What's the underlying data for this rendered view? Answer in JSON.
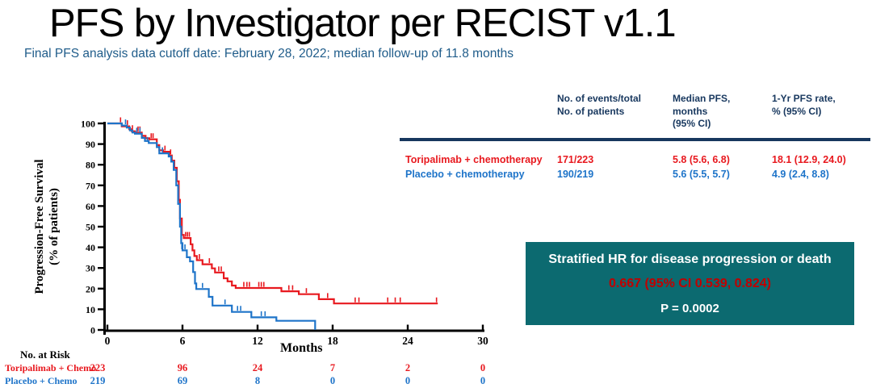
{
  "slide": {
    "title": "PFS by Investigator per RECIST v1.1",
    "subtitle": "Final PFS analysis data cutoff date: February 28, 2022; median follow-up of 11.8 months"
  },
  "summary_table": {
    "headers": [
      "No. of events/total\nNo. of patients",
      "Median PFS,\nmonths\n(95% CI)",
      "1-Yr PFS rate,\n% (95% CI)"
    ],
    "rows": [
      {
        "label": "Toripalimab + chemotherapy",
        "events": "171/223",
        "median_pfs": "5.8 (5.6, 6.8)",
        "one_yr_rate": "18.1 (12.9, 24.0)"
      },
      {
        "label": "Placebo + chemotherapy",
        "events": "190/219",
        "median_pfs": "5.6 (5.5, 5.7)",
        "one_yr_rate": "4.9 (2.4, 8.8)"
      }
    ]
  },
  "hr_box": {
    "title": "Stratified HR for disease progression or death",
    "hr_value": "0.667 (95% CI 0.539, 0.824)",
    "p_value": "P = 0.0002"
  },
  "colors": {
    "toripalimab_red": "#e8191f",
    "placebo_blue": "#1e74c9",
    "table_navy": "#17375e",
    "subtitle_blue": "#1f5c8a",
    "hr_box_teal": "#0c6a70",
    "hr_value_red": "#c00000"
  },
  "chart_data": {
    "type": "line",
    "subtype": "kaplan-meier-step",
    "title": "",
    "xlabel": "Months",
    "ylabel": "Progression-Free Survival\n(% of patients)",
    "xlim": [
      0,
      30
    ],
    "ylim": [
      0,
      100
    ],
    "xticks": [
      0,
      6,
      12,
      18,
      24,
      30
    ],
    "yticks": [
      0,
      10,
      20,
      30,
      40,
      50,
      60,
      70,
      80,
      90,
      100
    ],
    "grid": false,
    "series": [
      {
        "name": "Toripalimab + chemotherapy",
        "color": "#e8191f",
        "points": [
          [
            0,
            100
          ],
          [
            1.15,
            98.6
          ],
          [
            1.75,
            97.2
          ],
          [
            1.95,
            96.2
          ],
          [
            2.2,
            95.6
          ],
          [
            2.75,
            94.0
          ],
          [
            3.05,
            92.8
          ],
          [
            3.35,
            92.3
          ],
          [
            3.95,
            89.5
          ],
          [
            4.15,
            87.0
          ],
          [
            4.45,
            86.3
          ],
          [
            4.95,
            84.5
          ],
          [
            5.15,
            82.0
          ],
          [
            5.35,
            78.5
          ],
          [
            5.55,
            72.0
          ],
          [
            5.7,
            63.0
          ],
          [
            5.8,
            54.0
          ],
          [
            5.95,
            46.0
          ],
          [
            6.1,
            44.5
          ],
          [
            6.65,
            41.5
          ],
          [
            6.8,
            38.5
          ],
          [
            6.95,
            35.8
          ],
          [
            7.15,
            33.8
          ],
          [
            7.6,
            31.8
          ],
          [
            8.35,
            29.8
          ],
          [
            8.6,
            27.8
          ],
          [
            9.3,
            25.0
          ],
          [
            9.6,
            23.5
          ],
          [
            9.95,
            21.5
          ],
          [
            10.25,
            20.3
          ],
          [
            13.9,
            18.7
          ],
          [
            15.3,
            17.3
          ],
          [
            16.9,
            14.9
          ],
          [
            18.1,
            12.8
          ],
          [
            26.4,
            12.8
          ]
        ],
        "censors": [
          [
            1.05,
            100
          ],
          [
            1.6,
            98.6
          ],
          [
            2.0,
            96.2
          ],
          [
            2.45,
            95.6
          ],
          [
            2.6,
            95.6
          ],
          [
            3.5,
            92.3
          ],
          [
            3.65,
            92.3
          ],
          [
            4.6,
            86.3
          ],
          [
            5.05,
            84.5
          ],
          [
            6.25,
            44.5
          ],
          [
            6.4,
            44.5
          ],
          [
            6.55,
            44.5
          ],
          [
            7.35,
            33.8
          ],
          [
            8.15,
            31.8
          ],
          [
            8.9,
            27.8
          ],
          [
            9.1,
            27.8
          ],
          [
            10.9,
            20.3
          ],
          [
            11.15,
            20.3
          ],
          [
            11.35,
            20.3
          ],
          [
            12.1,
            20.3
          ],
          [
            12.3,
            20.3
          ],
          [
            12.5,
            20.3
          ],
          [
            14.5,
            18.7
          ],
          [
            14.8,
            18.7
          ],
          [
            15.9,
            17.3
          ],
          [
            17.6,
            14.9
          ],
          [
            19.8,
            12.8
          ],
          [
            20.1,
            12.8
          ],
          [
            22.4,
            12.8
          ],
          [
            23.0,
            12.8
          ],
          [
            23.4,
            12.8
          ],
          [
            26.3,
            12.8
          ]
        ]
      },
      {
        "name": "Placebo + chemotherapy",
        "color": "#1e74c9",
        "points": [
          [
            0,
            100
          ],
          [
            1.15,
            99.0
          ],
          [
            1.55,
            98.0
          ],
          [
            1.8,
            96.6
          ],
          [
            2.0,
            95.6
          ],
          [
            2.2,
            95.0
          ],
          [
            2.75,
            93.0
          ],
          [
            3.0,
            91.5
          ],
          [
            3.3,
            90.5
          ],
          [
            3.95,
            88.5
          ],
          [
            4.15,
            85.5
          ],
          [
            4.9,
            84.0
          ],
          [
            5.1,
            81.5
          ],
          [
            5.3,
            77.5
          ],
          [
            5.5,
            70.0
          ],
          [
            5.65,
            61.0
          ],
          [
            5.8,
            50.0
          ],
          [
            5.9,
            42.0
          ],
          [
            6.0,
            38.5
          ],
          [
            6.35,
            35.2
          ],
          [
            6.6,
            33.2
          ],
          [
            6.85,
            28.0
          ],
          [
            7.0,
            22.5
          ],
          [
            7.1,
            19.8
          ],
          [
            8.1,
            16.0
          ],
          [
            8.4,
            11.8
          ],
          [
            9.95,
            8.7
          ],
          [
            11.5,
            6.1
          ],
          [
            13.5,
            4.4
          ],
          [
            16.6,
            0
          ]
        ],
        "censors": [
          [
            1.45,
            99.0
          ],
          [
            2.35,
            95.0
          ],
          [
            2.6,
            95.0
          ],
          [
            3.2,
            90.5
          ],
          [
            4.4,
            85.5
          ],
          [
            5.95,
            38.5
          ],
          [
            6.2,
            38.5
          ],
          [
            7.6,
            19.8
          ],
          [
            9.4,
            11.8
          ],
          [
            10.4,
            8.7
          ],
          [
            10.65,
            8.7
          ],
          [
            12.3,
            6.1
          ],
          [
            12.6,
            6.1
          ]
        ]
      }
    ],
    "risk_table": {
      "label": "No. at Risk",
      "times": [
        0,
        6,
        12,
        18,
        24,
        30
      ],
      "rows": [
        {
          "name": "Toripalimab + Chemo",
          "counts": [
            223,
            96,
            24,
            7,
            2,
            0
          ]
        },
        {
          "name": "Placebo + Chemo",
          "counts": [
            219,
            69,
            8,
            0,
            0,
            0
          ]
        }
      ]
    }
  }
}
